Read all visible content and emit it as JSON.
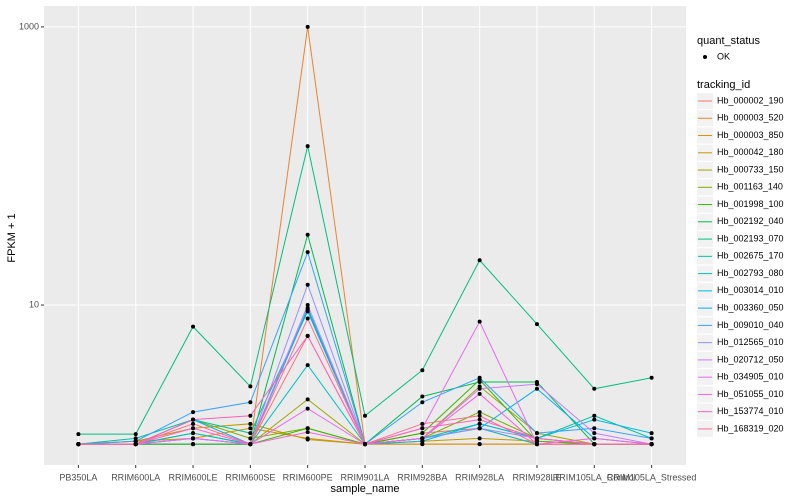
{
  "chart_data": {
    "type": "line",
    "x_label": "sample_name",
    "y_label": "FPKM + 1",
    "categories": [
      "PB350LA",
      "RRIM600LA",
      "RRIM600LE",
      "RRIM600SE",
      "RRIM600PE",
      "RRIM901LA",
      "RRIM928BA",
      "RRIM928LA",
      "RRIM928LE",
      "RRIM105LA_Control",
      "RRIM105LA_Stressed"
    ],
    "log_y": true,
    "ylim": [
      0.708,
      1413
    ],
    "yticks": [
      10,
      1000
    ],
    "grid": true,
    "point_color": "#000000",
    "legend_position": "right",
    "shape_legend": {
      "title": "quant_status",
      "labels": [
        "OK"
      ]
    },
    "color_legend_title": "tracking_id",
    "series": [
      {
        "name": "Hb_000002_190",
        "color": "#F8766D",
        "values": [
          1,
          1,
          1,
          1,
          6.0,
          1,
          1.2,
          1.3,
          1,
          1,
          1
        ]
      },
      {
        "name": "Hb_000003_520",
        "color": "#EA8331",
        "values": [
          1,
          1,
          1,
          1,
          1000,
          1,
          1,
          1,
          1,
          1,
          1
        ]
      },
      {
        "name": "Hb_000003_850",
        "color": "#D89000",
        "values": [
          1,
          1.05,
          1.1,
          1.3,
          1.1,
          1,
          1,
          1,
          1,
          1,
          1
        ]
      },
      {
        "name": "Hb_000042_180",
        "color": "#C09B00",
        "values": [
          1,
          1.05,
          1.3,
          1.4,
          1.08,
          1,
          1.05,
          1.1,
          1.05,
          1,
          1
        ]
      },
      {
        "name": "Hb_000733_150",
        "color": "#A3A500",
        "values": [
          1,
          1,
          1,
          1,
          2.1,
          1,
          1.1,
          2.6,
          1.2,
          1,
          1
        ]
      },
      {
        "name": "Hb_001163_140",
        "color": "#7CAE00",
        "values": [
          1,
          1,
          1.5,
          1.1,
          1.3,
          1,
          1.1,
          1.7,
          1.1,
          1,
          1
        ]
      },
      {
        "name": "Hb_001998_100",
        "color": "#39B600",
        "values": [
          1,
          1,
          1.2,
          1,
          1.3,
          1,
          1.2,
          2.9,
          1.05,
          1,
          1
        ]
      },
      {
        "name": "Hb_002192_040",
        "color": "#00BB4E",
        "values": [
          1,
          1,
          1,
          1,
          32,
          1,
          2.2,
          2.8,
          2.8,
          1,
          1
        ]
      },
      {
        "name": "Hb_002193_070",
        "color": "#00BF7D",
        "values": [
          1.18,
          1.18,
          7,
          2.6,
          139,
          1.6,
          3.4,
          21,
          7.3,
          2.5,
          3.0
        ]
      },
      {
        "name": "Hb_002675_170",
        "color": "#00C1A3",
        "values": [
          1,
          1.1,
          1.5,
          1.2,
          9,
          1,
          1.1,
          1.4,
          1.1,
          1.6,
          1.1
        ]
      },
      {
        "name": "Hb_002793_080",
        "color": "#00BFC4",
        "values": [
          1,
          1,
          1.2,
          1,
          3.7,
          1,
          1.1,
          1.3,
          1,
          1,
          1
        ]
      },
      {
        "name": "Hb_003014_010",
        "color": "#00BAE0",
        "values": [
          1,
          1,
          1.1,
          1,
          9.5,
          1,
          1.05,
          1.4,
          1.1,
          1.5,
          1.2
        ]
      },
      {
        "name": "Hb_003360_050",
        "color": "#00B0F6",
        "values": [
          1,
          1,
          1.5,
          1,
          9.3,
          1,
          1.1,
          1.3,
          2.5,
          1.1,
          1
        ]
      },
      {
        "name": "Hb_009010_040",
        "color": "#35A2FF",
        "values": [
          1,
          1.05,
          1.7,
          2.0,
          24,
          1,
          2.0,
          3.0,
          1.2,
          1.3,
          1.1
        ]
      },
      {
        "name": "Hb_012565_010",
        "color": "#9590FF",
        "values": [
          1,
          1,
          1.1,
          1,
          14,
          1,
          1.1,
          1.3,
          1.1,
          1,
          1
        ]
      },
      {
        "name": "Hb_020712_050",
        "color": "#C77CFF",
        "values": [
          1,
          1,
          1.1,
          1,
          10,
          1,
          1.1,
          2.5,
          2.7,
          1.2,
          1
        ]
      },
      {
        "name": "Hb_034905_010",
        "color": "#E76BF3",
        "values": [
          1,
          1,
          1.1,
          1,
          1.8,
          1,
          1.3,
          7.6,
          1,
          1,
          1
        ]
      },
      {
        "name": "Hb_051055_010",
        "color": "#FA62DB",
        "values": [
          1,
          1,
          1.3,
          1,
          1.22,
          1,
          1.1,
          2.3,
          1,
          1.1,
          1
        ]
      },
      {
        "name": "Hb_153774_010",
        "color": "#FF62BC",
        "values": [
          1,
          1,
          1.5,
          1.6,
          6,
          1,
          1.3,
          1.5,
          1.1,
          1,
          1
        ]
      },
      {
        "name": "Hb_168319_020",
        "color": "#FF6C91",
        "values": [
          1,
          1,
          1.4,
          1,
          8,
          1,
          1.4,
          1.6,
          1,
          1,
          1
        ]
      }
    ]
  }
}
